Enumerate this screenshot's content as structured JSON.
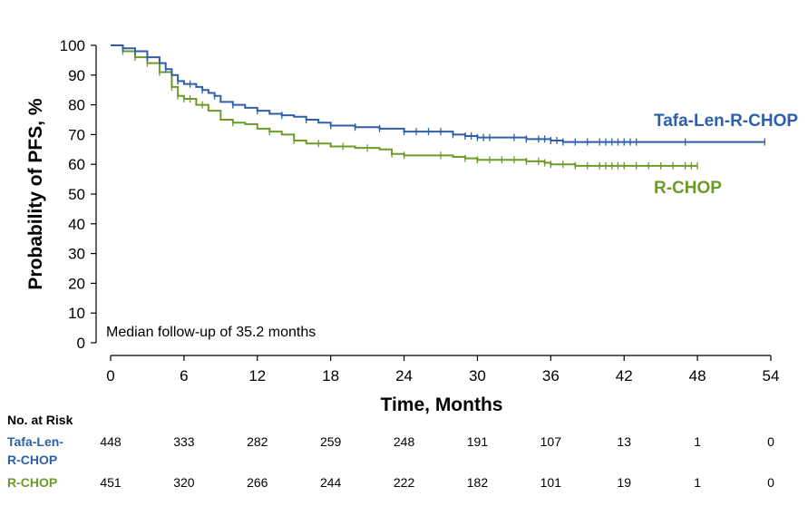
{
  "chart_data": {
    "type": "line",
    "xlabel": "Time, Months",
    "ylabel": "Probability of PFS, %",
    "xlim": [
      0,
      54
    ],
    "ylim": [
      0,
      100
    ],
    "xticks": [
      0,
      6,
      12,
      18,
      24,
      30,
      36,
      42,
      48,
      54
    ],
    "yticks": [
      0,
      10,
      20,
      30,
      40,
      50,
      60,
      70,
      80,
      90,
      100
    ],
    "grid": false,
    "annotation": "Median follow-up of 35.2 months",
    "colors": {
      "tafa": "#2e5fa8",
      "rchop": "#6e9a2a"
    },
    "series": [
      {
        "name": "Tafa-Len-R-CHOP",
        "color": "#2e5fa8",
        "x": [
          0,
          1,
          2,
          3,
          4,
          4.5,
          5,
          5.5,
          6,
          7,
          7.5,
          8,
          8.5,
          9,
          10,
          11,
          12,
          13,
          14,
          15,
          16,
          17,
          18,
          20,
          22,
          24,
          26,
          28,
          29,
          30,
          32,
          34,
          36,
          37,
          38,
          40,
          42,
          44,
          46,
          48,
          50,
          52,
          53.5
        ],
        "y": [
          100,
          99,
          98,
          96,
          94,
          92,
          90,
          88,
          87,
          86,
          85,
          84,
          83,
          81,
          80,
          79,
          78,
          77,
          76.5,
          76,
          75,
          74,
          73,
          72.5,
          72,
          71,
          71,
          70,
          69.5,
          69,
          69,
          68.5,
          68,
          67.5,
          67.5,
          67.5,
          67.5,
          67.5,
          67.5,
          67.5,
          67.5,
          67.5,
          67.5
        ],
        "censor_x": [
          1,
          2,
          3,
          4.5,
          5.5,
          6.5,
          7.5,
          8.5,
          10,
          12,
          14,
          16,
          18,
          20,
          22,
          24,
          25,
          26,
          27,
          28,
          29,
          29.5,
          30,
          30.5,
          31,
          33,
          34,
          35,
          35.5,
          36,
          36.5,
          37,
          38,
          39,
          40,
          40.5,
          41,
          41.5,
          42,
          42.5,
          43,
          47,
          53.5
        ]
      },
      {
        "name": "R-CHOP",
        "color": "#6e9a2a",
        "x": [
          0,
          1,
          2,
          3,
          4,
          5,
          5.5,
          6,
          7,
          8,
          9,
          10,
          11,
          12,
          13,
          14,
          15,
          16,
          17,
          18,
          20,
          22,
          23,
          24,
          26,
          28,
          29,
          30,
          32,
          34,
          35,
          35.5,
          36,
          38,
          40,
          42,
          44,
          46,
          48
        ],
        "y": [
          100,
          98,
          96,
          94,
          91,
          86,
          83,
          82,
          80,
          78,
          75,
          74,
          73.5,
          72,
          71,
          70,
          68,
          67,
          67,
          66,
          65.5,
          65,
          63.5,
          63,
          63,
          62.5,
          62,
          61.5,
          61.5,
          61,
          61,
          60.5,
          60,
          59.5,
          59.5,
          59.5,
          59.5,
          59.5,
          59.5
        ],
        "censor_x": [
          1,
          2,
          3,
          4,
          5,
          5.5,
          6,
          6.5,
          7.5,
          10,
          13,
          15,
          17,
          19,
          21,
          23,
          24,
          27,
          29,
          30,
          31,
          32,
          33,
          34,
          35,
          35.5,
          36,
          37,
          38,
          39,
          40,
          40.5,
          41,
          41.5,
          42,
          43,
          44,
          45,
          46,
          47,
          47.5,
          48
        ]
      }
    ]
  },
  "risk_table": {
    "title": "No. at Risk",
    "rows": [
      {
        "label_line1": "Tafa-Len-",
        "label_line2": "R-CHOP",
        "color": "#2e5fa8",
        "values": [
          "448",
          "333",
          "282",
          "259",
          "248",
          "191",
          "107",
          "13",
          "1",
          "0"
        ]
      },
      {
        "label_line1": "R-CHOP",
        "label_line2": "",
        "color": "#6e9a2a",
        "values": [
          "451",
          "320",
          "266",
          "244",
          "222",
          "182",
          "101",
          "19",
          "1",
          "0"
        ]
      }
    ]
  }
}
